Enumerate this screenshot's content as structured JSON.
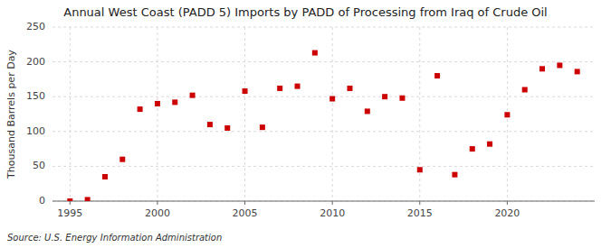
{
  "chart_data": {
    "type": "scatter",
    "title": "Annual West Coast (PADD 5) Imports by PADD of Processing from Iraq of Crude Oil",
    "ylabel": "Thousand Barrels per Day",
    "source": "Source: U.S. Energy Information Administration",
    "x": [
      1995,
      1996,
      1997,
      1998,
      1999,
      2000,
      2001,
      2002,
      2003,
      2004,
      2005,
      2006,
      2007,
      2008,
      2009,
      2010,
      2011,
      2012,
      2013,
      2014,
      2015,
      2016,
      2017,
      2018,
      2019,
      2020,
      2021,
      2022,
      2023,
      2024
    ],
    "values": [
      0,
      2,
      35,
      60,
      132,
      140,
      142,
      152,
      110,
      105,
      158,
      106,
      162,
      165,
      213,
      147,
      162,
      129,
      150,
      148,
      45,
      180,
      38,
      75,
      82,
      124,
      160,
      190,
      195,
      186
    ],
    "color": "#cc0000",
    "marker": "square",
    "xlim": [
      1994,
      2025
    ],
    "ylim": [
      0,
      250
    ],
    "xticks": [
      1995,
      2000,
      2005,
      2010,
      2015,
      2020
    ],
    "yticks": [
      0,
      50,
      100,
      150,
      200,
      250
    ],
    "grid": true
  }
}
